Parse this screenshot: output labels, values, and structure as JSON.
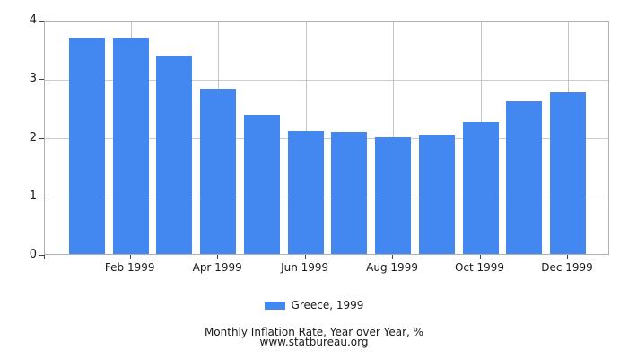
{
  "chart_data": {
    "type": "bar",
    "title": "Monthly Inflation Rate, Year over Year, %",
    "source_line": "www.statbureau.org",
    "categories": [
      "Jan 1999",
      "Feb 1999",
      "Mar 1999",
      "Apr 1999",
      "May 1999",
      "Jun 1999",
      "Jul 1999",
      "Aug 1999",
      "Sep 1999",
      "Oct 1999",
      "Nov 1999",
      "Dec 1999"
    ],
    "x_tick_labels": [
      "Feb 1999",
      "Apr 1999",
      "Jun 1999",
      "Aug 1999",
      "Oct 1999",
      "Dec 1999"
    ],
    "labeled_category_indices": [
      1,
      3,
      5,
      7,
      9,
      11
    ],
    "series": [
      {
        "name": "Greece, 1999",
        "values": [
          3.7,
          3.69,
          3.39,
          2.82,
          2.38,
          2.1,
          2.09,
          1.99,
          2.04,
          2.25,
          2.61,
          2.76
        ],
        "color": "#4388f0"
      }
    ],
    "xlabel": "",
    "ylabel": "",
    "ylim": [
      0,
      4
    ],
    "yticks": [
      0,
      1,
      2,
      3,
      4
    ],
    "grid": true,
    "legend_position": "bottom"
  },
  "legend": {
    "label": "Greece, 1999",
    "swatch_color": "#4388f0"
  },
  "footer": {
    "line1": "Monthly Inflation Rate, Year over Year, %",
    "line2": "www.statbureau.org"
  }
}
